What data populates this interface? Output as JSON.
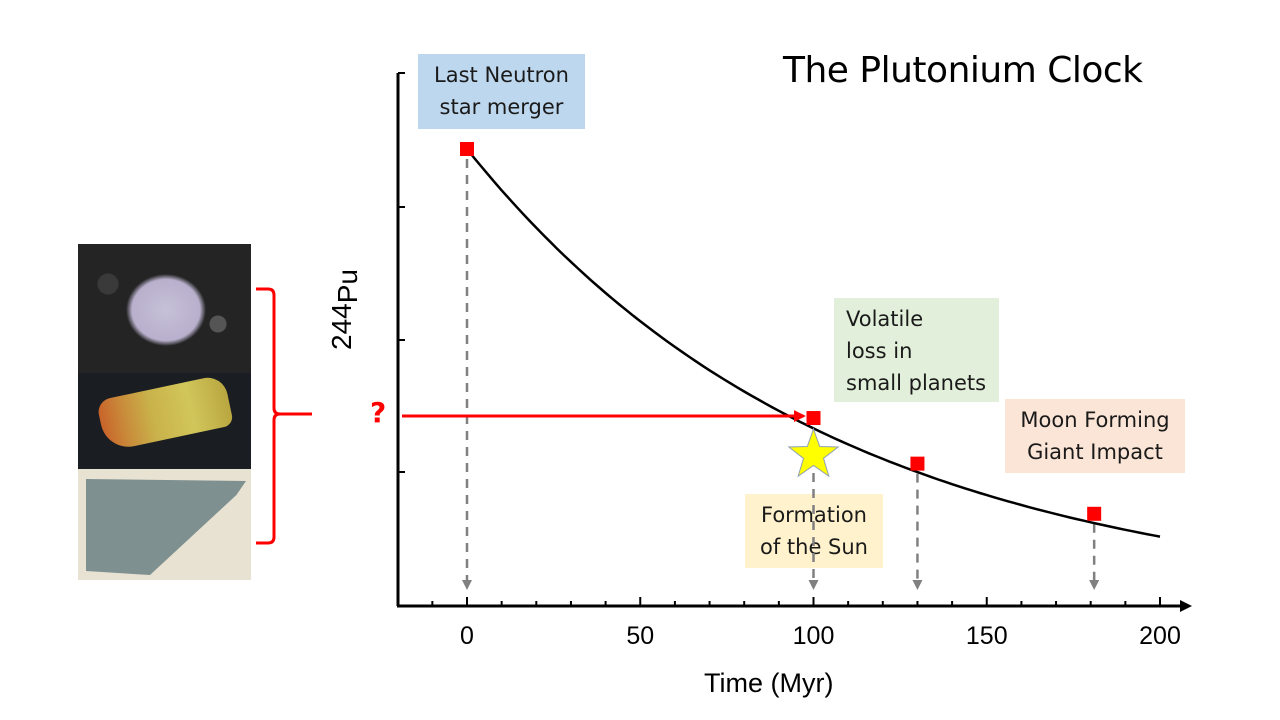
{
  "chart_data": {
    "type": "line",
    "title": "The Plutonium Clock",
    "xlabel": "Time (Myr)",
    "ylabel": {
      "mass_number": "244",
      "element": "Pu"
    },
    "xlim": [
      -20,
      205
    ],
    "x_ticks": [
      0,
      50,
      100,
      150,
      200
    ],
    "x_tick_labels": [
      "0",
      "50",
      "100",
      "150",
      "200"
    ],
    "x_minor_step": 10,
    "y_ticks_count": 4,
    "decay_curve": {
      "start_time": 0,
      "end_time": 200,
      "relative_start": 1.0,
      "relative_end": 0.15
    },
    "events": [
      {
        "name": "Last Neutron star merger",
        "time": 0,
        "relative_pu": 1.0
      },
      {
        "name": "Formation of the Sun",
        "time": 100,
        "relative_pu": 0.41
      },
      {
        "name": "Volatile loss in small planets",
        "time": 130,
        "relative_pu": 0.31
      },
      {
        "name": "Moon Forming Giant Impact",
        "time": 181,
        "relative_pu": 0.2
      }
    ],
    "annotations": {
      "neutron_merger": [
        "Last Neutron",
        "star merger"
      ],
      "volatile": [
        "Volatile",
        "loss in",
        "small planets"
      ],
      "moon": [
        "Moon Forming",
        "Giant Impact"
      ],
      "sun": [
        "Formation",
        "of the Sun"
      ],
      "question": "?"
    }
  },
  "colors": {
    "marker": "#ff0000",
    "curve": "#000000",
    "dashed": "#808080",
    "arrow": "#ff0000",
    "star_fill": "#ffff00",
    "box_blue": "#bdd7ee",
    "box_green": "#e2efda",
    "box_peach": "#fbe5d6",
    "box_yellow": "#fff2cc"
  },
  "photos": [
    "meteorite-inclusion-photo",
    "crystal-photo",
    "rock-sample-photo"
  ]
}
